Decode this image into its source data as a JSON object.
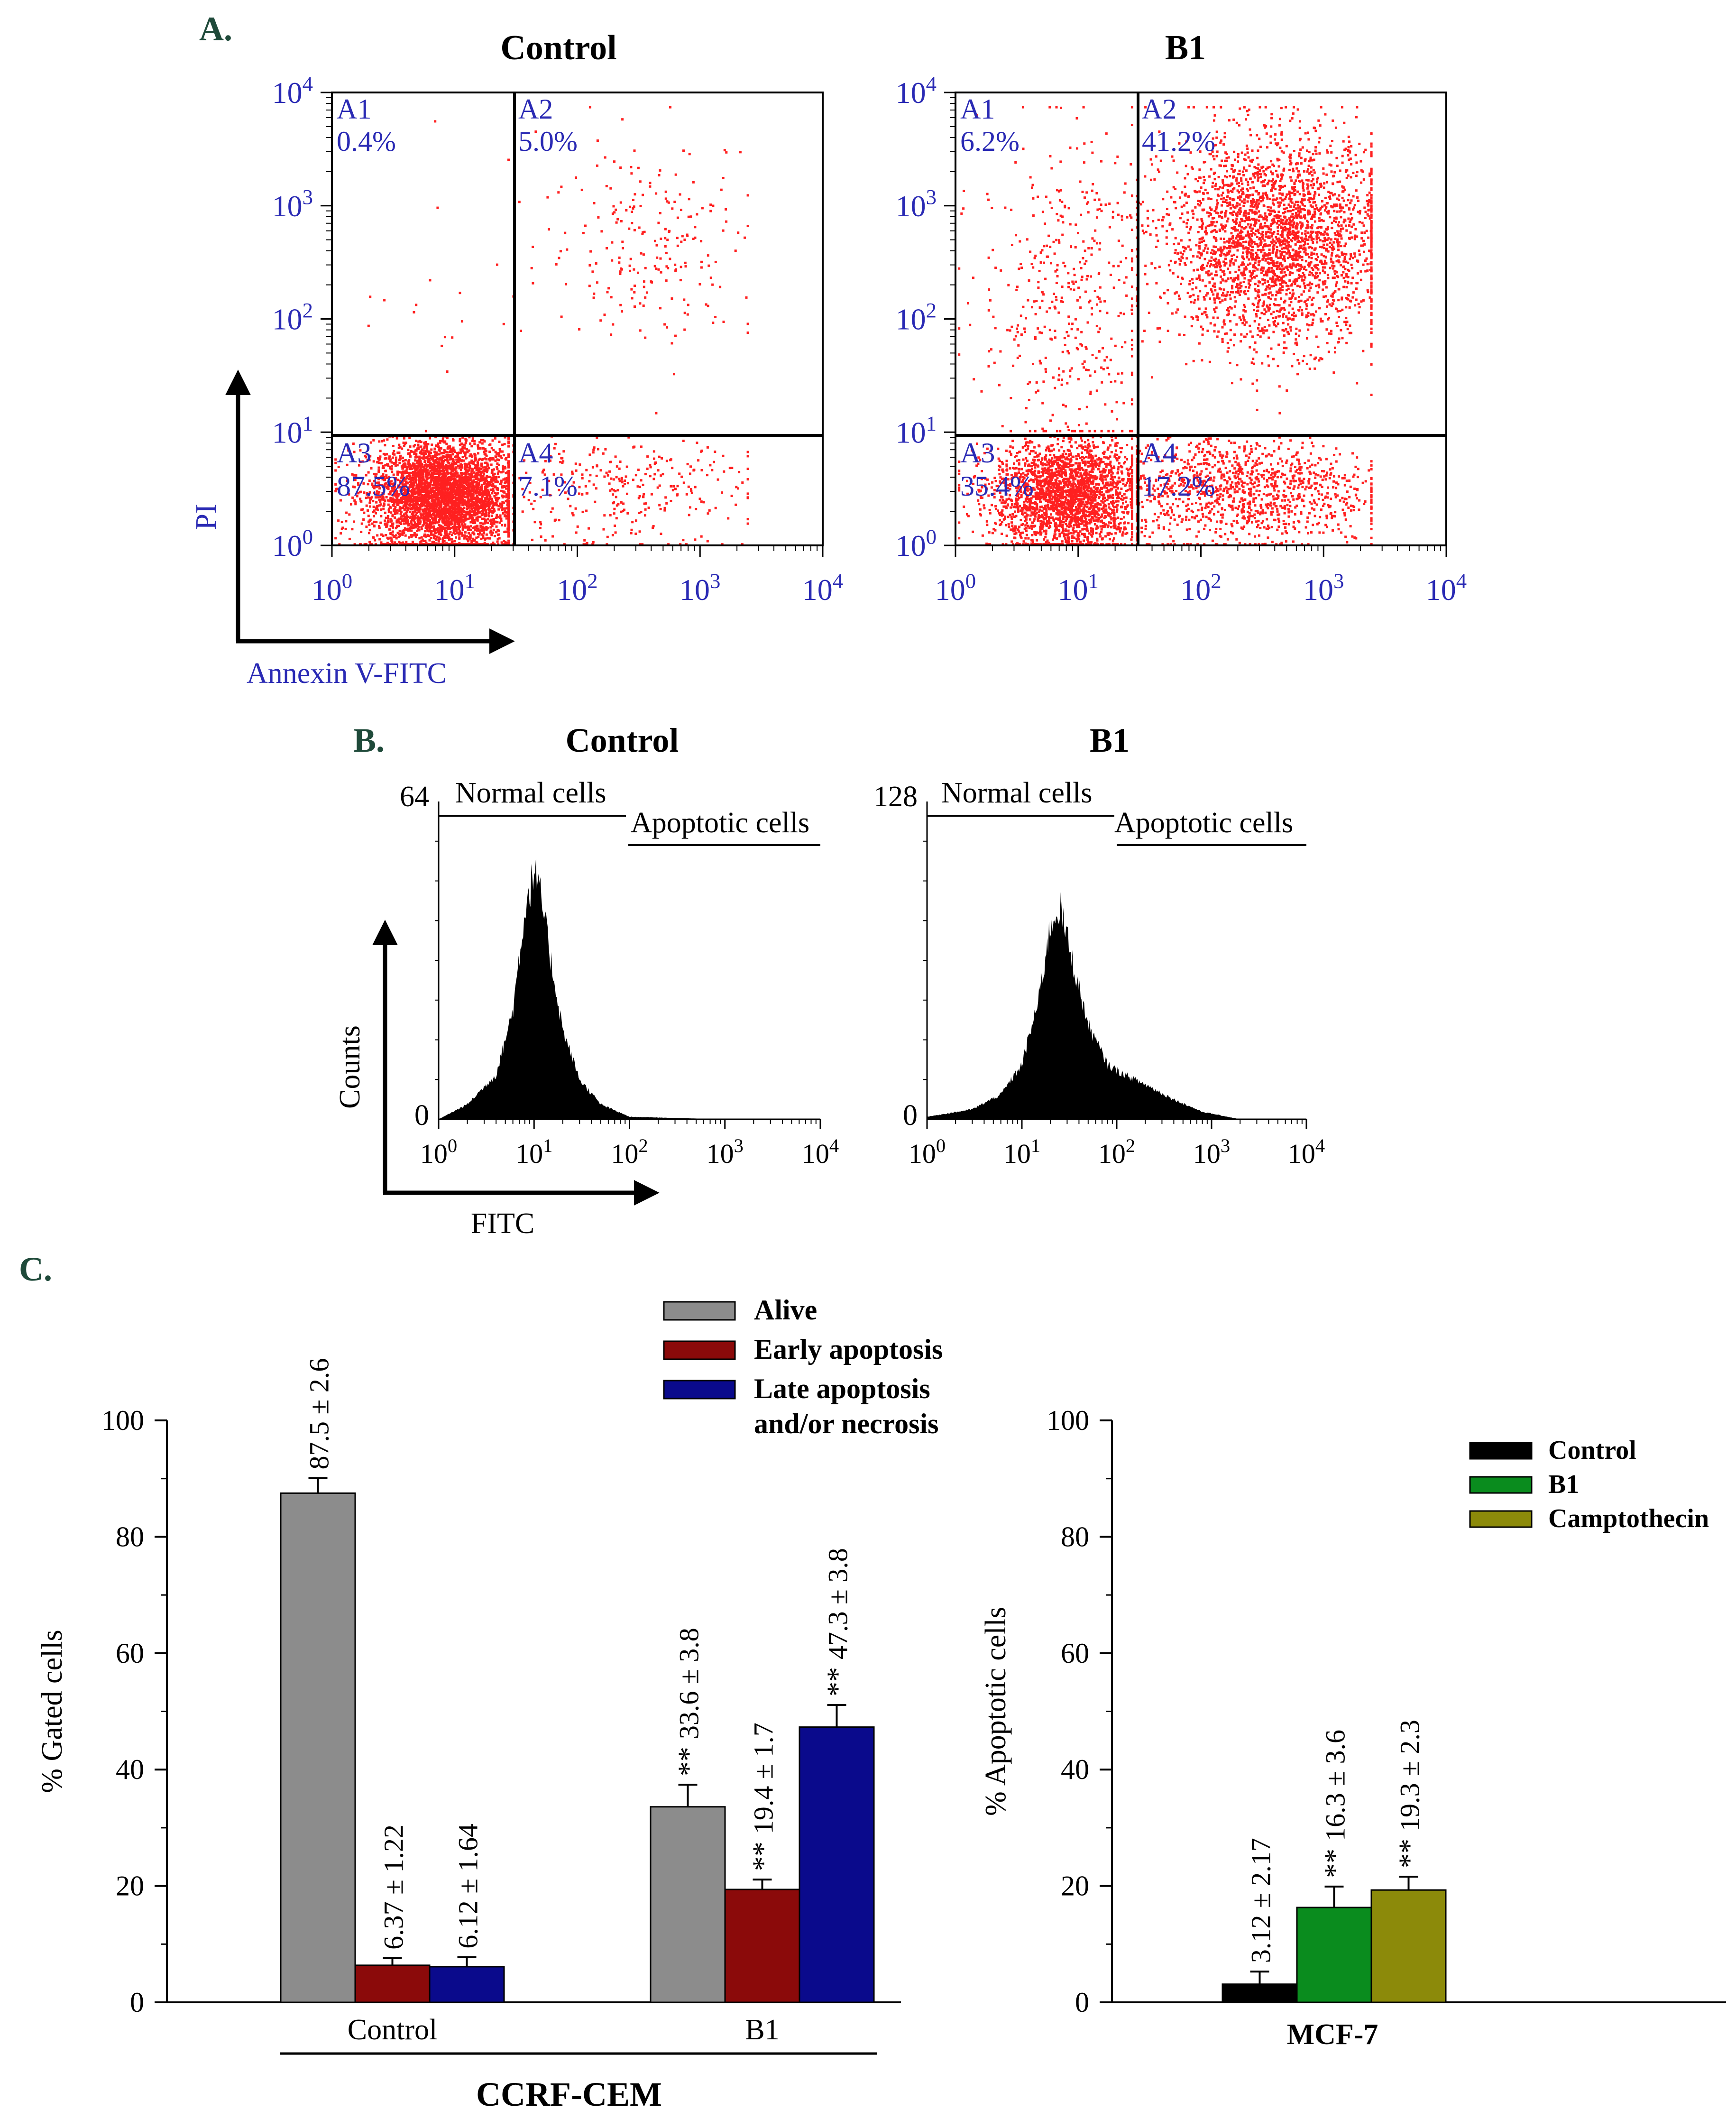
{
  "colors": {
    "panel_letter": "#1f4a3a",
    "axis_label_blue": "#2a2ab4",
    "dots": "#ff2020",
    "alive": "#8c8c8c",
    "early": "#8b0a0a",
    "late": "#0a0a8c",
    "control": "#000000",
    "b1": "#0a8c1e",
    "camptothecin": "#8c8a0a"
  },
  "panel_A": {
    "letter": "A.",
    "y_axis_label": "PI",
    "x_axis_label": "Annexin V-FITC",
    "tick_labels": [
      "10",
      "10",
      "10",
      "10",
      "10"
    ],
    "tick_exps": [
      "0",
      "1",
      "2",
      "3",
      "4"
    ],
    "plots": [
      {
        "title": "Control",
        "quadrants": [
          {
            "name": "A1",
            "value": "0.4%"
          },
          {
            "name": "A2",
            "value": "5.0%"
          },
          {
            "name": "A3",
            "value": "87.5%"
          },
          {
            "name": "A4",
            "value": "7.1%"
          }
        ]
      },
      {
        "title": "B1",
        "quadrants": [
          {
            "name": "A1",
            "value": "6.2%"
          },
          {
            "name": "A2",
            "value": "41.2%"
          },
          {
            "name": "A3",
            "value": "35.4%"
          },
          {
            "name": "A4",
            "value": "17.2%"
          }
        ]
      }
    ]
  },
  "panel_B": {
    "letter": "B.",
    "y_axis_label": "Counts",
    "x_axis_label": "FITC",
    "tick_labels": [
      "10",
      "10",
      "10",
      "10",
      "10"
    ],
    "tick_exps": [
      "0",
      "1",
      "2",
      "3",
      "4"
    ],
    "gate_normal": "Normal cells",
    "gate_apoptotic": "Apoptotic cells",
    "plots": [
      {
        "title": "Control",
        "ymax_label": "64",
        "ymin_label": "0"
      },
      {
        "title": "B1",
        "ymax_label": "128",
        "ymin_label": "0"
      }
    ]
  },
  "panel_C": {
    "letter": "C.",
    "legend_left": [
      "Alive",
      "Early apoptosis",
      "Late apoptosis",
      "and/or necrosis"
    ],
    "legend_right": [
      "Control",
      "B1",
      "Camptothecin"
    ],
    "group_caption_left": "CCRF-CEM",
    "group_caption_right": "MCF-7",
    "significance": "**"
  },
  "chart_data": [
    {
      "type": "scatter",
      "title": "Control",
      "xlabel": "Annexin V-FITC",
      "ylabel": "PI",
      "xscale": "log",
      "yscale": "log",
      "xlim": [
        1,
        10000
      ],
      "ylim": [
        1,
        10000
      ],
      "quadrant_percentages": {
        "A1": 0.4,
        "A2": 5.0,
        "A3": 87.5,
        "A4": 7.1
      }
    },
    {
      "type": "scatter",
      "title": "B1",
      "xlabel": "Annexin V-FITC",
      "ylabel": "PI",
      "xscale": "log",
      "yscale": "log",
      "xlim": [
        1,
        10000
      ],
      "ylim": [
        1,
        10000
      ],
      "quadrant_percentages": {
        "A1": 6.2,
        "A2": 41.2,
        "A3": 35.4,
        "A4": 17.2
      }
    },
    {
      "type": "area",
      "title": "Control",
      "xlabel": "FITC",
      "ylabel": "Counts",
      "xscale": "log",
      "xlim": [
        1,
        10000
      ],
      "ylim": [
        0,
        64
      ],
      "x": [
        1,
        2,
        4,
        6,
        8,
        10,
        12,
        15,
        20,
        30,
        50,
        100,
        1000,
        10000
      ],
      "y": [
        0,
        3,
        9,
        22,
        42,
        50,
        44,
        32,
        18,
        8,
        3,
        0.5,
        0,
        0
      ]
    },
    {
      "type": "area",
      "title": "B1",
      "xlabel": "FITC",
      "ylabel": "Counts",
      "xscale": "log",
      "xlim": [
        1,
        10000
      ],
      "ylim": [
        0,
        128
      ],
      "x": [
        1,
        3,
        6,
        10,
        15,
        20,
        25,
        35,
        50,
        80,
        120,
        200,
        400,
        800,
        2000,
        10000
      ],
      "y": [
        1,
        4,
        10,
        22,
        48,
        78,
        86,
        62,
        38,
        22,
        18,
        14,
        8,
        3,
        0,
        0
      ]
    },
    {
      "type": "bar",
      "ylabel": "% Gated cells",
      "ylim": [
        0,
        100
      ],
      "yticks": [
        0,
        20,
        40,
        60,
        80,
        100
      ],
      "categories": [
        "Control",
        "B1"
      ],
      "series": [
        {
          "name": "Alive",
          "values": [
            87.5,
            33.6
          ],
          "errors": [
            2.6,
            3.8
          ],
          "labels": [
            "87.5 ± 2.6",
            "33.6 ± 3.8"
          ],
          "significant": [
            false,
            true
          ]
        },
        {
          "name": "Early apoptosis",
          "values": [
            6.37,
            19.4
          ],
          "errors": [
            1.22,
            1.7
          ],
          "labels": [
            "6.37 ± 1.22",
            "19.4 ± 1.7"
          ],
          "significant": [
            false,
            true
          ]
        },
        {
          "name": "Late apoptosis and/or necrosis",
          "values": [
            6.12,
            47.3
          ],
          "errors": [
            1.64,
            3.8
          ],
          "labels": [
            "6.12 ± 1.64",
            "47.3 ± 3.8"
          ],
          "significant": [
            false,
            true
          ]
        }
      ],
      "group_label": "CCRF-CEM",
      "legend": "top-center"
    },
    {
      "type": "bar",
      "ylabel": "% Apoptotic cells",
      "ylim": [
        0,
        100
      ],
      "yticks": [
        0,
        20,
        40,
        60,
        80,
        100
      ],
      "categories": [
        "MCF-7"
      ],
      "series": [
        {
          "name": "Control",
          "values": [
            3.12
          ],
          "errors": [
            2.17
          ],
          "labels": [
            "3.12 ± 2.17"
          ],
          "significant": [
            false
          ]
        },
        {
          "name": "B1",
          "values": [
            16.3
          ],
          "errors": [
            3.6
          ],
          "labels": [
            "16.3 ± 3.6"
          ],
          "significant": [
            true
          ]
        },
        {
          "name": "Camptothecin",
          "values": [
            19.3
          ],
          "errors": [
            2.3
          ],
          "labels": [
            "19.3 ± 2.3"
          ],
          "significant": [
            true
          ]
        }
      ],
      "legend": "top-right"
    }
  ]
}
